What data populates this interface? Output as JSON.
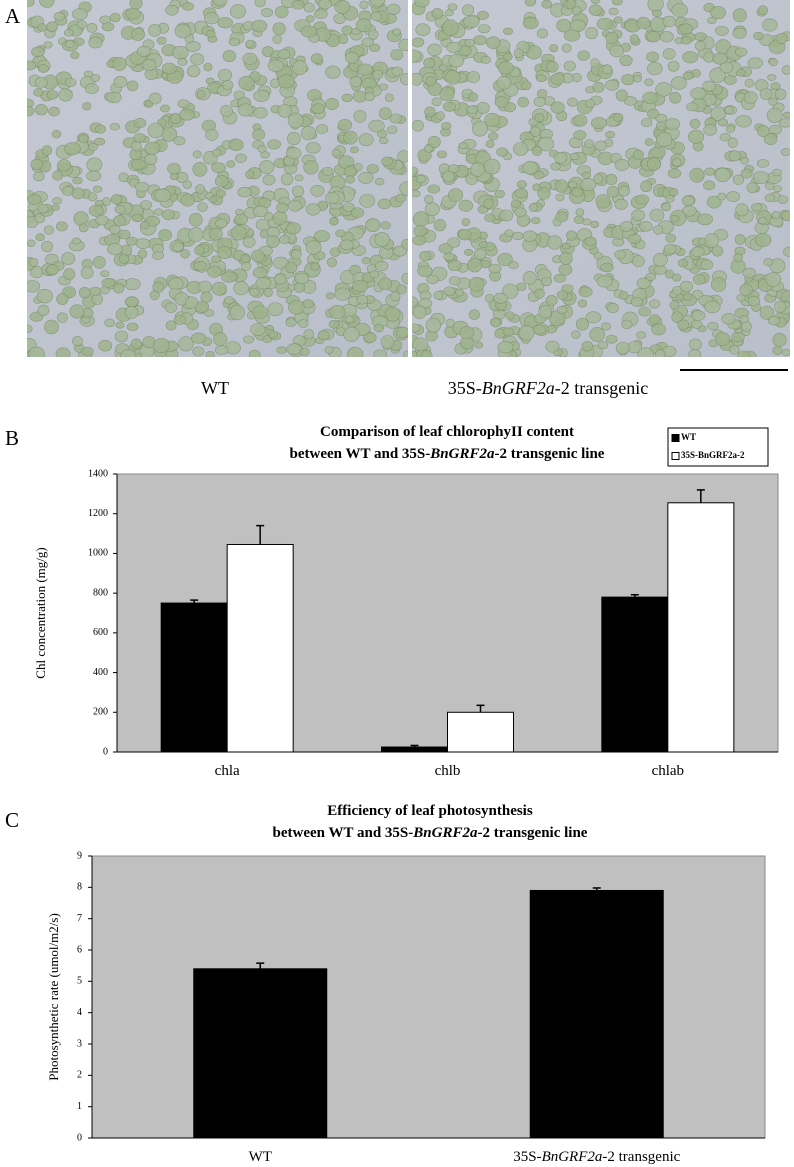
{
  "panel_labels": [
    "A",
    "B",
    "C"
  ],
  "image_labels": [
    [
      "WT"
    ],
    [
      "35S-",
      "BnGRF2a",
      "-2 transgenic"
    ]
  ],
  "chart_data": [
    {
      "type": "bar",
      "title_lines": [
        [
          "Comparison of leaf chlorophyII content"
        ],
        [
          "between WT and 35S-",
          "BnGRF2a",
          "-2 transgenic line"
        ]
      ],
      "y_label": "Chl concentration (mg/g)",
      "categories": [
        [
          "chla"
        ],
        [
          "chlb"
        ],
        [
          "chlab"
        ]
      ],
      "series": [
        {
          "name": "WT",
          "color": "#000000",
          "values": [
            750,
            25,
            780
          ],
          "errors": [
            15,
            8,
            12
          ]
        },
        {
          "name": "35S-BnGRF2a-2",
          "color": "#ffffff",
          "values": [
            1045,
            200,
            1255
          ],
          "errors": [
            95,
            35,
            65
          ]
        }
      ],
      "ylim": [
        0,
        1400
      ],
      "yticks": [
        0,
        200,
        400,
        600,
        800,
        1000,
        1200,
        1400
      ],
      "legend": "top-right",
      "background": "#c0c0c0"
    },
    {
      "type": "bar",
      "title_lines": [
        [
          "Efficiency of leaf photosynthesis"
        ],
        [
          "between WT and 35S-",
          "BnGRF2a",
          "-2 transgenic line"
        ]
      ],
      "y_label": "Photosynthetic rate (umol/m2/s)",
      "categories": [
        [
          "WT"
        ],
        [
          "35S-",
          "BnGRF2a",
          "-2 transgenic"
        ]
      ],
      "values": [
        5.4,
        7.9
      ],
      "errors": [
        0.18,
        0.08
      ],
      "color": "#000000",
      "ylim": [
        0,
        9
      ],
      "yticks": [
        0,
        1,
        2,
        3,
        4,
        5,
        6,
        7,
        8,
        9
      ],
      "background": "#c0c0c0"
    }
  ]
}
